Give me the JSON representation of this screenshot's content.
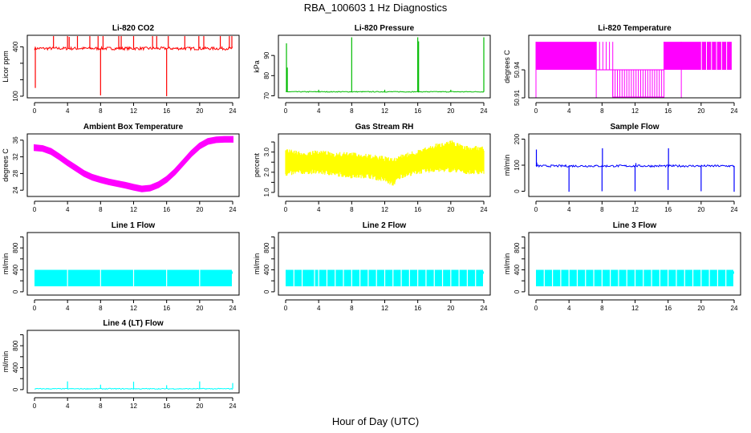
{
  "figure": {
    "title": "RBA_100603  1 Hz Diagnostics",
    "xlabel": "Hour of Day (UTC)"
  },
  "chart_data": [
    {
      "type": "line",
      "title": "Li-820 CO2",
      "ylabel": "Licor ppm",
      "color": "#ff0000",
      "xlim": [
        0,
        24
      ],
      "ylim": [
        90,
        470
      ],
      "yticks": [
        100,
        200,
        300,
        400
      ],
      "ytick_labels": [
        "100",
        "",
        "",
        "400"
      ],
      "xticks": [
        0,
        4,
        8,
        12,
        16,
        20,
        24
      ],
      "series": [
        {
          "baseline": 390,
          "noise": 9,
          "spikes": [
            [
              0.1,
              150
            ],
            [
              2.3,
              465
            ],
            [
              4,
              465
            ],
            [
              4.2,
              460
            ],
            [
              5.2,
              465
            ],
            [
              6.7,
              465
            ],
            [
              7.7,
              465
            ],
            [
              8,
              105
            ],
            [
              8.3,
              465
            ],
            [
              10.2,
              465
            ],
            [
              10.5,
              465
            ],
            [
              12,
              465
            ],
            [
              14.3,
              465
            ],
            [
              14.8,
              465
            ],
            [
              16,
              100
            ],
            [
              16.2,
              465
            ],
            [
              18.2,
              465
            ],
            [
              19.9,
              465
            ],
            [
              20.5,
              465
            ],
            [
              22.5,
              465
            ],
            [
              23.6,
              465
            ],
            [
              23.9,
              465
            ]
          ]
        }
      ]
    },
    {
      "type": "line",
      "title": "Li-820 Pressure",
      "ylabel": "kPa",
      "color": "#00bb00",
      "xlim": [
        0,
        24
      ],
      "ylim": [
        69,
        100
      ],
      "yticks": [
        70,
        80,
        90
      ],
      "ytick_labels": [
        "70",
        "80",
        "90"
      ],
      "xticks": [
        0,
        4,
        8,
        12,
        16,
        20,
        24
      ],
      "series": [
        {
          "baseline": 72,
          "noise": 0.2,
          "spikes": [
            [
              0.1,
              96
            ],
            [
              0.2,
              84
            ],
            [
              4,
              73
            ],
            [
              8,
              99
            ],
            [
              12,
              73
            ],
            [
              16,
              99
            ],
            [
              16.1,
              97
            ],
            [
              20,
              73
            ],
            [
              24,
              99
            ]
          ]
        }
      ]
    },
    {
      "type": "step",
      "title": "Li-820 Temperature",
      "ylabel": "degrees C",
      "color": "#ff00ff",
      "xlim": [
        0,
        24
      ],
      "ylim": [
        50.91,
        50.977
      ],
      "yticks": [
        50.91,
        50.94
      ],
      "ytick_labels": [
        "50.91",
        "50.94"
      ],
      "xticks": [
        0,
        4,
        8,
        12,
        16,
        20,
        24
      ],
      "levels": [
        50.91,
        50.94,
        50.97
      ],
      "segments": [
        [
          0,
          7.3,
          "hi"
        ],
        [
          7.3,
          9.3,
          "mid"
        ],
        [
          9.3,
          15.5,
          "lo"
        ],
        [
          15.5,
          17.6,
          "hi"
        ],
        [
          17.6,
          23.7,
          "hi-mix"
        ]
      ]
    },
    {
      "type": "line",
      "title": "Ambient Box Temperature",
      "ylabel": "degrees C",
      "color": "#ff00ff",
      "xlim": [
        0,
        24
      ],
      "ylim": [
        22.5,
        37.5
      ],
      "yticks": [
        24,
        28,
        32,
        36
      ],
      "ytick_labels": [
        "24",
        "28",
        "32",
        "36"
      ],
      "xticks": [
        0,
        4,
        8,
        12,
        16,
        20,
        24
      ],
      "series": [
        {
          "x": [
            0,
            1,
            2,
            3,
            4,
            5,
            6,
            7,
            8,
            9,
            10,
            11,
            12,
            13,
            14,
            15,
            16,
            17,
            18,
            19,
            20,
            21,
            22,
            23,
            24
          ],
          "y": [
            34.2,
            34.0,
            33.3,
            32.0,
            30.6,
            29.3,
            28.0,
            27.1,
            26.5,
            26.0,
            25.6,
            25.2,
            24.7,
            24.3,
            24.5,
            25.3,
            26.6,
            28.4,
            30.6,
            32.8,
            34.6,
            35.7,
            36.1,
            36.2,
            36.2
          ],
          "band": 0.6
        }
      ]
    },
    {
      "type": "line",
      "title": "Gas Stream RH",
      "ylabel": "percent",
      "color": "#ffff00",
      "xlim": [
        0,
        24
      ],
      "ylim": [
        0.8,
        3.9
      ],
      "yticks": [
        1.0,
        1.5,
        2.0,
        2.5,
        3.0,
        3.5
      ],
      "ytick_labels": [
        "1.0",
        "",
        "2.0",
        "",
        "3.0",
        ""
      ],
      "xticks": [
        0,
        4,
        8,
        12,
        16,
        20,
        24
      ],
      "series": [
        {
          "x": [
            0,
            2,
            4,
            6,
            8,
            10,
            12,
            13,
            14,
            16,
            18,
            20,
            22,
            24
          ],
          "low": [
            1.8,
            1.9,
            1.9,
            1.8,
            1.7,
            1.7,
            1.5,
            1.3,
            1.7,
            1.9,
            2.0,
            2.0,
            1.9,
            1.9
          ],
          "high": [
            3.2,
            3.0,
            3.1,
            3.0,
            3.0,
            2.9,
            2.8,
            2.7,
            2.9,
            3.1,
            3.4,
            3.6,
            3.3,
            3.3
          ]
        }
      ]
    },
    {
      "type": "line",
      "title": "Sample Flow",
      "ylabel": "ml/min",
      "color": "#0000ff",
      "xlim": [
        0,
        24
      ],
      "ylim": [
        -20,
        220
      ],
      "yticks": [
        0,
        100,
        200
      ],
      "ytick_labels": [
        "0",
        "100",
        "200"
      ],
      "xticks": [
        0,
        4,
        8,
        12,
        16,
        20,
        24
      ],
      "series": [
        {
          "baseline": 97,
          "noise": 4,
          "spikes": [
            [
              0.05,
              160
            ],
            [
              0.1,
              110
            ],
            [
              4,
              -2
            ],
            [
              8,
              0
            ],
            [
              8.05,
              165
            ],
            [
              12,
              0
            ],
            [
              12.1,
              108
            ],
            [
              16,
              5
            ],
            [
              16.05,
              165
            ],
            [
              20,
              0
            ],
            [
              24,
              -2
            ]
          ]
        }
      ]
    },
    {
      "type": "area",
      "title": "Line 1 Flow",
      "ylabel": "ml/min",
      "color": "#00ffff",
      "xlim": [
        0,
        24
      ],
      "ylim": [
        -60,
        1080
      ],
      "yticks": [
        0,
        200,
        400,
        600,
        800,
        1000
      ],
      "ytick_labels": [
        "0",
        "",
        "400",
        "",
        "800",
        ""
      ],
      "xticks": [
        0,
        4,
        8,
        12,
        16,
        20,
        24
      ],
      "series": [
        {
          "low": 100,
          "high": 400,
          "gaps": [
            4,
            8,
            12,
            16,
            20
          ]
        }
      ]
    },
    {
      "type": "area",
      "title": "Line 2 Flow",
      "ylabel": "ml/min",
      "color": "#00ffff",
      "xlim": [
        0,
        24
      ],
      "ylim": [
        -60,
        1080
      ],
      "yticks": [
        0,
        200,
        400,
        600,
        800,
        1000
      ],
      "ytick_labels": [
        "0",
        "",
        "400",
        "",
        "800",
        ""
      ],
      "xticks": [
        0,
        4,
        8,
        12,
        16,
        20,
        24
      ],
      "series": [
        {
          "low": 100,
          "high": 400,
          "gaps": [
            1,
            2,
            3.5,
            4,
            5,
            6,
            7,
            8,
            9,
            10,
            11,
            12,
            13,
            14,
            15,
            16,
            17,
            18,
            19,
            20,
            21,
            22,
            23
          ]
        }
      ]
    },
    {
      "type": "area",
      "title": "Line 3 Flow",
      "ylabel": "ml/min",
      "color": "#00ffff",
      "xlim": [
        0,
        24
      ],
      "ylim": [
        -60,
        1080
      ],
      "yticks": [
        0,
        200,
        400,
        600,
        800,
        1000
      ],
      "ytick_labels": [
        "0",
        "",
        "400",
        "",
        "800",
        ""
      ],
      "xticks": [
        0,
        4,
        8,
        12,
        16,
        20,
        24
      ],
      "series": [
        {
          "low": 100,
          "high": 400,
          "gaps": [
            1,
            2,
            3,
            4,
            5,
            6,
            7,
            8,
            9,
            10,
            11,
            12,
            13,
            14,
            15,
            16,
            17,
            18,
            19,
            20,
            21,
            22,
            23
          ]
        }
      ]
    },
    {
      "type": "line",
      "title": "Line 4 (LT) Flow",
      "ylabel": "ml/min",
      "color": "#00ffff",
      "xlim": [
        0,
        24
      ],
      "ylim": [
        -60,
        1080
      ],
      "yticks": [
        0,
        200,
        400,
        600,
        800,
        1000
      ],
      "ytick_labels": [
        "0",
        "",
        "400",
        "",
        "800",
        ""
      ],
      "xticks": [
        0,
        4,
        8,
        12,
        16,
        20,
        24
      ],
      "series": [
        {
          "baseline": 15,
          "noise": 8,
          "spikes": [
            [
              4,
              150
            ],
            [
              8,
              90
            ],
            [
              12,
              145
            ],
            [
              16,
              80
            ],
            [
              20,
              150
            ],
            [
              24,
              120
            ]
          ]
        }
      ]
    }
  ]
}
